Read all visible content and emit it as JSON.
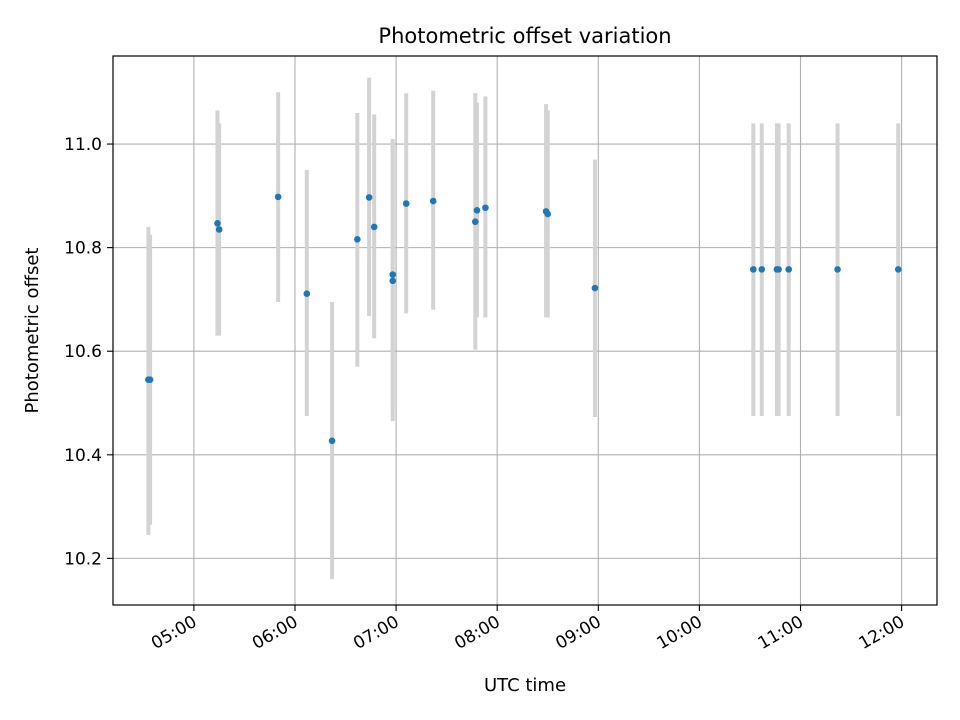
{
  "chart_data": {
    "type": "scatter",
    "title": "Photometric offset variation",
    "xlabel": "UTC time",
    "ylabel": "Photometric offset",
    "grid": true,
    "legend": "none",
    "xlim": [
      "04:12",
      "12:21"
    ],
    "ylim": [
      10.11,
      11.17
    ],
    "x_ticks": [
      "05:00",
      "06:00",
      "07:00",
      "08:00",
      "09:00",
      "10:00",
      "11:00",
      "12:00"
    ],
    "y_ticks": [
      "10.2",
      "10.4",
      "10.6",
      "10.8",
      "11.0"
    ],
    "colors": {
      "point": "#1f77b4",
      "errorbar": "#d3d3d3",
      "grid": "#b0b0b0"
    },
    "series": [
      {
        "points": [
          {
            "x": "04:33",
            "y": 10.545,
            "ylo": 10.245,
            "yhi": 10.84
          },
          {
            "x": "04:34",
            "y": 10.545,
            "ylo": 10.265,
            "yhi": 10.825
          },
          {
            "x": "05:14",
            "y": 10.847,
            "ylo": 10.63,
            "yhi": 11.065
          },
          {
            "x": "05:15",
            "y": 10.835,
            "ylo": 10.63,
            "yhi": 11.04
          },
          {
            "x": "05:50",
            "y": 10.898,
            "ylo": 10.695,
            "yhi": 11.1
          },
          {
            "x": "06:07",
            "y": 10.711,
            "ylo": 10.475,
            "yhi": 10.95
          },
          {
            "x": "06:22",
            "y": 10.427,
            "ylo": 10.16,
            "yhi": 10.695
          },
          {
            "x": "06:37",
            "y": 10.816,
            "ylo": 10.57,
            "yhi": 11.06
          },
          {
            "x": "06:44",
            "y": 10.897,
            "ylo": 10.668,
            "yhi": 11.128
          },
          {
            "x": "06:47",
            "y": 10.84,
            "ylo": 10.625,
            "yhi": 11.057
          },
          {
            "x": "06:58",
            "y": 10.748,
            "ylo": 10.49,
            "yhi": 11.01
          },
          {
            "x": "06:58",
            "y": 10.736,
            "ylo": 10.465,
            "yhi": 11.0
          },
          {
            "x": "07:06",
            "y": 10.885,
            "ylo": 10.673,
            "yhi": 11.098
          },
          {
            "x": "07:22",
            "y": 10.89,
            "ylo": 10.68,
            "yhi": 11.103
          },
          {
            "x": "07:47",
            "y": 10.85,
            "ylo": 10.603,
            "yhi": 11.098
          },
          {
            "x": "07:48",
            "y": 10.872,
            "ylo": 10.665,
            "yhi": 11.08
          },
          {
            "x": "07:53",
            "y": 10.877,
            "ylo": 10.665,
            "yhi": 11.092
          },
          {
            "x": "08:29",
            "y": 10.87,
            "ylo": 10.665,
            "yhi": 11.077
          },
          {
            "x": "08:30",
            "y": 10.865,
            "ylo": 10.665,
            "yhi": 11.065
          },
          {
            "x": "08:58",
            "y": 10.722,
            "ylo": 10.473,
            "yhi": 10.97
          },
          {
            "x": "10:32",
            "y": 10.758,
            "ylo": 10.475,
            "yhi": 11.04
          },
          {
            "x": "10:37",
            "y": 10.758,
            "ylo": 10.475,
            "yhi": 11.04
          },
          {
            "x": "10:46",
            "y": 10.758,
            "ylo": 10.475,
            "yhi": 11.04
          },
          {
            "x": "10:47",
            "y": 10.758,
            "ylo": 10.475,
            "yhi": 11.04
          },
          {
            "x": "10:53",
            "y": 10.758,
            "ylo": 10.475,
            "yhi": 11.04
          },
          {
            "x": "11:22",
            "y": 10.758,
            "ylo": 10.475,
            "yhi": 11.04
          },
          {
            "x": "11:58",
            "y": 10.758,
            "ylo": 10.475,
            "yhi": 11.04
          }
        ]
      }
    ]
  }
}
